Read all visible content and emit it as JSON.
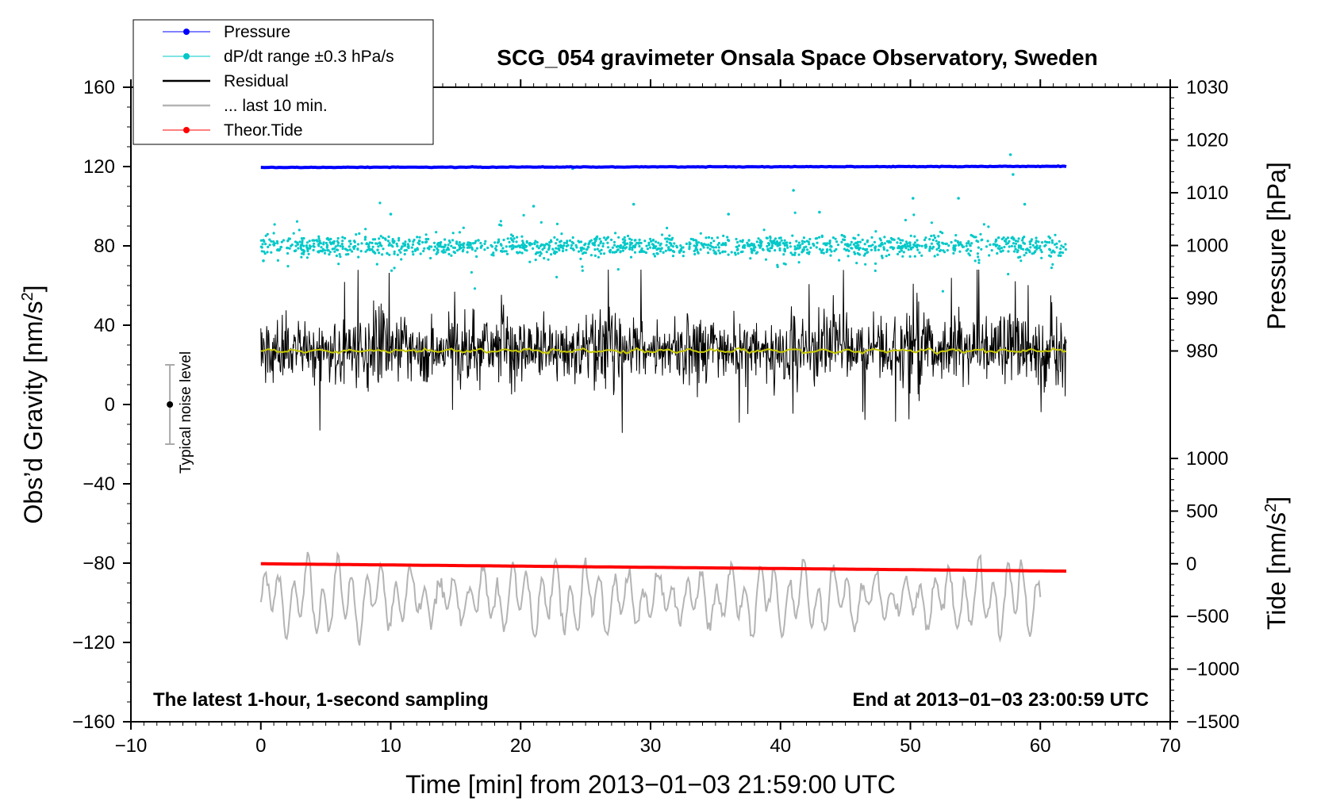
{
  "chart_data": {
    "type": "line",
    "title": "SCG_054 gravimeter Onsala Space Observatory, Sweden",
    "xlabel": "Time [min] from 2013−01−03 21:59:00 UTC",
    "ylabel": "Obs’d Gravity [nm/s²]",
    "ylabel_main": "Obs’d Gravity [nm/s",
    "ylabel_sup": "2",
    "ylabel_end": "]",
    "y2label": "Pressure [hPa]",
    "y3label": "Tide [nm/s²]",
    "y3label_main": "Tide [nm/s",
    "y3label_sup": "2",
    "y3label_end": "]",
    "xlim": [
      -10,
      70
    ],
    "ylim": [
      -160,
      160
    ],
    "pressure_axis_range": [
      980,
      1030
    ],
    "tide_axis_range": [
      -1500,
      1000
    ],
    "xticks": [
      "−10",
      "0",
      "10",
      "20",
      "30",
      "40",
      "50",
      "60",
      "70"
    ],
    "xtick_values": [
      -10,
      0,
      10,
      20,
      30,
      40,
      50,
      60,
      70
    ],
    "yticks": [
      "160",
      "120",
      "80",
      "40",
      "0",
      "−40",
      "−80",
      "−120",
      "−160"
    ],
    "ytick_values": [
      160,
      120,
      80,
      40,
      0,
      -40,
      -80,
      -120,
      -160
    ],
    "pressure_ticks": [
      "1030",
      "1020",
      "1010",
      "1000",
      "990",
      "980"
    ],
    "pressure_tick_values": [
      1030,
      1020,
      1010,
      1000,
      990,
      980
    ],
    "tide_ticks": [
      "1000",
      "500",
      "0",
      "−500",
      "−1000",
      "−1500"
    ],
    "tide_tick_values": [
      1000,
      500,
      0,
      -500,
      -1000,
      -1500
    ],
    "legend": {
      "placement": "top-left",
      "items": [
        {
          "label": "Pressure",
          "color": "#0000ff",
          "style": "line-dot"
        },
        {
          "label": "dP/dt range ±0.3 hPa/s",
          "color": "#00c8c8",
          "style": "line-dot"
        },
        {
          "label": "Residual",
          "color": "#000000",
          "style": "line"
        },
        {
          "label": "... last 10 min.",
          "color": "#b4b4b4",
          "style": "line"
        },
        {
          "label": "Theor.Tide",
          "color": "#ff0000",
          "style": "line-dot"
        }
      ]
    },
    "annotations": {
      "left": "The latest 1-hour, 1-second sampling",
      "right": "End at 2013−01−03 23:00:59 UTC",
      "noise_label": "Typical noise level"
    },
    "noise_bar": {
      "x": -7,
      "center": 0,
      "half_range": 20
    },
    "series": [
      {
        "name": "Pressure",
        "color": "#0000ff",
        "unit": "hPa",
        "x_range": [
          0,
          62
        ],
        "level_start": 1014.8,
        "level_end": 1015.0
      },
      {
        "name": "dP/dt range",
        "color": "#00c8c8",
        "x_range": [
          0,
          62
        ],
        "center_on_gravity_axis": 80,
        "spread": 6
      },
      {
        "name": "Residual",
        "color": "#000000",
        "x_range": [
          0,
          62
        ],
        "center": 28,
        "min": -22,
        "max": 68
      },
      {
        "name": "Residual mean",
        "color": "#c8c800",
        "x_range": [
          0,
          62
        ],
        "value": 27
      },
      {
        "name": "... last 10 min.",
        "color": "#b4b4b4",
        "x_range": [
          0,
          60
        ],
        "center_on_gravity_axis": -98,
        "min": -140,
        "max": -66
      },
      {
        "name": "Theor.Tide",
        "color": "#ff0000",
        "unit": "nm/s²",
        "x_range": [
          0,
          62
        ],
        "value_start": 0,
        "value_end": -70
      }
    ]
  }
}
